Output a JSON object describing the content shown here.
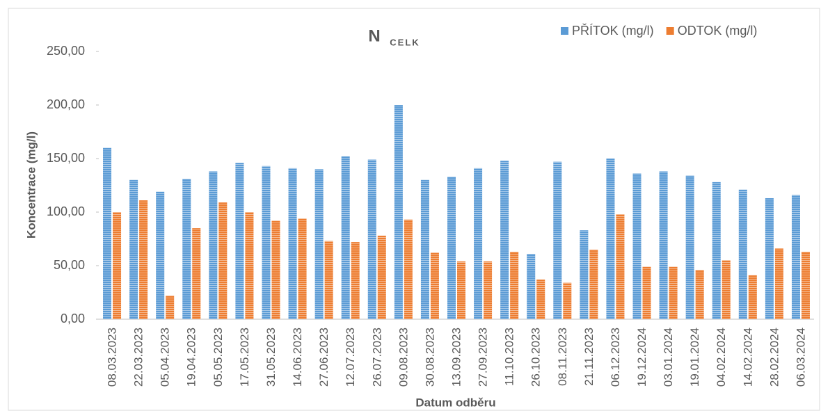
{
  "chart_data": {
    "type": "bar",
    "title": "N",
    "title_subscript": "CELK",
    "y_label": "Koncentrace (mg/l)",
    "x_label": "Datum odběru",
    "categories": [
      "08.03.2023",
      "22.03.2023",
      "05.04.2023",
      "19.04.2023",
      "05.05.2023",
      "17.05.2023",
      "31.05.2023",
      "14.06.2023",
      "27.06.2023",
      "12.07.2023",
      "26.07.2023",
      "09.08.2023",
      "30.08.2023",
      "13.09.2023",
      "27.09.2023",
      "11.10.2023",
      "26.10.2023",
      "08.11.2023",
      "21.11.2023",
      "06.12.2023",
      "19.12.2024",
      "03.01.2024",
      "19.01.2024",
      "04.02.2024",
      "14.02.2024",
      "28.02.2024",
      "06.03.2024"
    ],
    "series": [
      {
        "name": "PŘÍTOK (mg/l)",
        "color": "#5b9bd5",
        "values": [
          160,
          130,
          119,
          131,
          138,
          146,
          143,
          141,
          140,
          152,
          149,
          200,
          130,
          133,
          141,
          148,
          61,
          147,
          83,
          150,
          136,
          138,
          134,
          128,
          121,
          113,
          116
        ]
      },
      {
        "name": "ODTOK (mg/l)",
        "color": "#ed7d31",
        "values": [
          100,
          111,
          22,
          85,
          109,
          100,
          92,
          94,
          73,
          72,
          78,
          93,
          62,
          54,
          54,
          63,
          37,
          34,
          65,
          98,
          49,
          49,
          46,
          55,
          41,
          66,
          63
        ]
      }
    ],
    "ylim": [
      0,
      250
    ],
    "yticks": [
      {
        "value": 0,
        "label": "0,00"
      },
      {
        "value": 50,
        "label": "50,00"
      },
      {
        "value": 100,
        "label": "100,00"
      },
      {
        "value": 150,
        "label": "150,00"
      },
      {
        "value": 200,
        "label": "200,00"
      },
      {
        "value": 250,
        "label": "250,00"
      }
    ],
    "legend": "top-right"
  }
}
